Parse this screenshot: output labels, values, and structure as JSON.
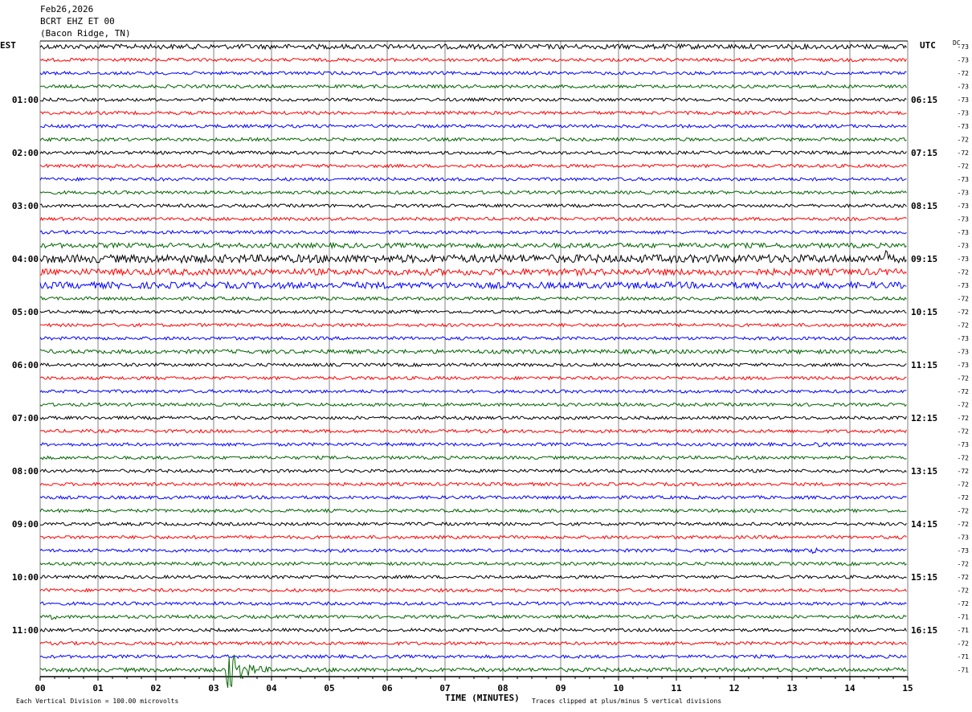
{
  "header": {
    "date": "Feb26,2026",
    "station": "BCRT EHZ ET 00",
    "location": "(Bacon Ridge, TN)"
  },
  "left_axis_label": "EST",
  "right_axis_label": "UTC",
  "dc_label": "DC",
  "footer": {
    "scale_note": "Each Vertical Division =  100.00 microvolts",
    "clip_note": "Traces clipped at plus/minus 5 vertical divisions"
  },
  "colors": {
    "trace_cycle": [
      "#000000",
      "#ff0000",
      "#0000ff",
      "#006400"
    ],
    "grid": "#808080"
  },
  "chart_data": {
    "type": "line",
    "xlabel": "TIME (MINUTES)",
    "xlim": [
      0,
      15
    ],
    "x_ticks": [
      "00",
      "01",
      "02",
      "03",
      "04",
      "05",
      "06",
      "07",
      "08",
      "09",
      "10",
      "11",
      "12",
      "13",
      "14",
      "15"
    ],
    "traces_per_hour": 4,
    "left_hour_labels": [
      "01:00",
      "02:00",
      "03:00",
      "04:00",
      "05:00",
      "06:00",
      "07:00",
      "08:00",
      "09:00",
      "10:00",
      "11:00"
    ],
    "right_hour_labels": [
      "06:15",
      "07:15",
      "08:15",
      "09:15",
      "10:15",
      "11:15",
      "12:15",
      "13:15",
      "14:15",
      "15:15",
      "16:15"
    ],
    "dc_offsets": [
      "-73",
      "-73",
      "-72",
      "-73",
      "-73",
      "-73",
      "-73",
      "-72",
      "-72",
      "-72",
      "-73",
      "-73",
      "-73",
      "-73",
      "-73",
      "-73",
      "-73",
      "-72",
      "-73",
      "-72",
      "-72",
      "-72",
      "-73",
      "-73",
      "-73",
      "-72",
      "-72",
      "-72",
      "-72",
      "-72",
      "-73",
      "-72",
      "-72",
      "-72",
      "-72",
      "-72",
      "-72",
      "-73",
      "-73",
      "-72",
      "-72",
      "-72",
      "-72",
      "-71",
      "-71",
      "-72",
      "-71",
      "-71"
    ],
    "noise_amplitude": [
      3,
      2,
      2,
      2,
      2,
      2,
      2,
      2,
      2,
      2,
      2,
      2,
      2,
      2,
      2,
      3,
      5,
      4,
      4,
      2,
      2,
      2,
      2,
      2.5,
      2,
      2,
      2,
      2,
      2,
      2,
      2,
      2,
      2,
      2,
      2,
      2,
      2,
      2,
      2,
      2,
      2,
      2,
      2,
      2,
      2,
      2,
      2,
      2.5
    ],
    "events": [
      {
        "trace": 0,
        "minute": 11.3,
        "duration_min": 0.8,
        "amplitude": 4
      },
      {
        "trace": 15,
        "minute": 12.0,
        "duration_min": 3.0,
        "amplitude": 4
      },
      {
        "trace": 16,
        "minute": 14.6,
        "duration_min": 0.05,
        "amplitude": 10
      },
      {
        "trace": 23,
        "minute": 7.5,
        "duration_min": 3.0,
        "amplitude": 3
      },
      {
        "trace": 30,
        "minute": 13.3,
        "duration_min": 1.7,
        "amplitude": 4
      },
      {
        "trace": 31,
        "minute": 0.0,
        "duration_min": 1.0,
        "amplitude": 3
      },
      {
        "trace": 38,
        "minute": 13.3,
        "duration_min": 0.8,
        "amplitude": 5
      },
      {
        "trace": 43,
        "minute": 0.2,
        "duration_min": 0.5,
        "amplitude": 4
      },
      {
        "trace": 47,
        "minute": 3.2,
        "duration_min": 1.0,
        "amplitude": 32
      }
    ]
  }
}
